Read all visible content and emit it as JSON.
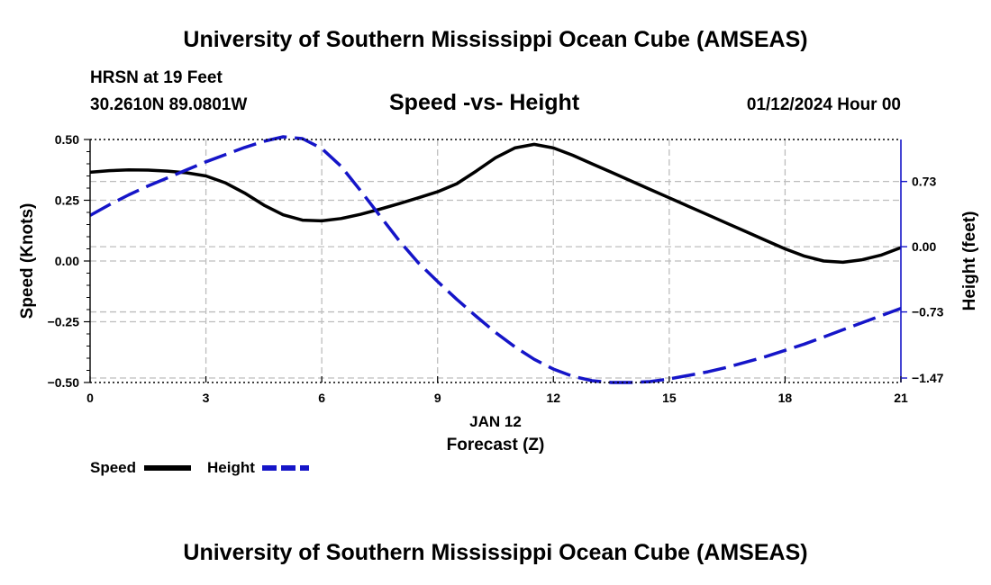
{
  "header": {
    "title_top": "University of Southern Mississippi Ocean Cube (AMSEAS)",
    "station": "HRSN at 19 Feet",
    "coords": "30.2610N  89.0801W",
    "subtitle": "Speed -vs- Height",
    "datetime": "01/12/2024 Hour 00",
    "title_bottom": "University of Southern Mississippi Ocean Cube (AMSEAS)"
  },
  "chart_data": {
    "type": "line",
    "title": "Speed -vs- Height",
    "x": [
      0,
      0.5,
      1,
      1.5,
      2,
      2.5,
      3,
      3.5,
      4,
      4.5,
      5,
      5.5,
      6,
      6.5,
      7,
      7.5,
      8,
      8.5,
      9,
      9.5,
      10,
      10.5,
      11,
      11.5,
      12,
      12.5,
      13,
      13.5,
      14,
      14.5,
      15,
      15.5,
      16,
      16.5,
      17,
      17.5,
      18,
      18.5,
      19,
      19.5,
      20,
      20.5,
      21
    ],
    "xlabel": "Forecast (Z)",
    "xsublabel": "JAN 12",
    "xlim": [
      0,
      21
    ],
    "xticks": [
      "0",
      "3",
      "6",
      "9",
      "12",
      "15",
      "18",
      "21"
    ],
    "y_left": {
      "label": "Speed (Knots)",
      "lim": [
        -0.5,
        0.5
      ],
      "ticks": [
        "0.50",
        "0.25",
        "0.00",
        "−0.25",
        "−0.50"
      ],
      "tick_values": [
        0.5,
        0.25,
        0,
        -0.25,
        -0.5
      ]
    },
    "y_right": {
      "label": "Height (feet)",
      "lim": [
        -1.52,
        1.2
      ],
      "ticks": [
        "0.73",
        "0.00",
        "−0.73",
        "−1.47"
      ],
      "tick_values": [
        0.73,
        0,
        -0.73,
        -1.47
      ]
    },
    "series": [
      {
        "name": "Speed",
        "axis": "left",
        "color": "#000000",
        "dash": "solid",
        "values": [
          0.365,
          0.372,
          0.375,
          0.374,
          0.37,
          0.363,
          0.35,
          0.322,
          0.28,
          0.23,
          0.19,
          0.168,
          0.165,
          0.175,
          0.192,
          0.213,
          0.236,
          0.26,
          0.285,
          0.318,
          0.37,
          0.425,
          0.465,
          0.48,
          0.465,
          0.435,
          0.4,
          0.365,
          0.33,
          0.295,
          0.26,
          0.225,
          0.19,
          0.155,
          0.12,
          0.085,
          0.05,
          0.02,
          0.0,
          -0.005,
          0.005,
          0.025,
          0.055
        ]
      },
      {
        "name": "Height",
        "axis": "right",
        "color": "#1515c8",
        "dash": "dashed",
        "values": [
          0.35,
          0.47,
          0.58,
          0.68,
          0.77,
          0.86,
          0.95,
          1.03,
          1.11,
          1.18,
          1.23,
          1.21,
          1.1,
          0.9,
          0.63,
          0.35,
          0.07,
          -0.18,
          -0.39,
          -0.59,
          -0.78,
          -0.96,
          -1.12,
          -1.26,
          -1.37,
          -1.45,
          -1.5,
          -1.52,
          -1.52,
          -1.51,
          -1.48,
          -1.44,
          -1.4,
          -1.35,
          -1.29,
          -1.23,
          -1.16,
          -1.09,
          -1.01,
          -0.93,
          -0.85,
          -0.77,
          -0.69
        ]
      }
    ],
    "legend": [
      {
        "label": "Speed",
        "color": "#000000",
        "dash": "solid"
      },
      {
        "label": "Height",
        "color": "#1515c8",
        "dash": "dashed"
      }
    ],
    "legend_position": "bottom-left",
    "grid": true
  }
}
